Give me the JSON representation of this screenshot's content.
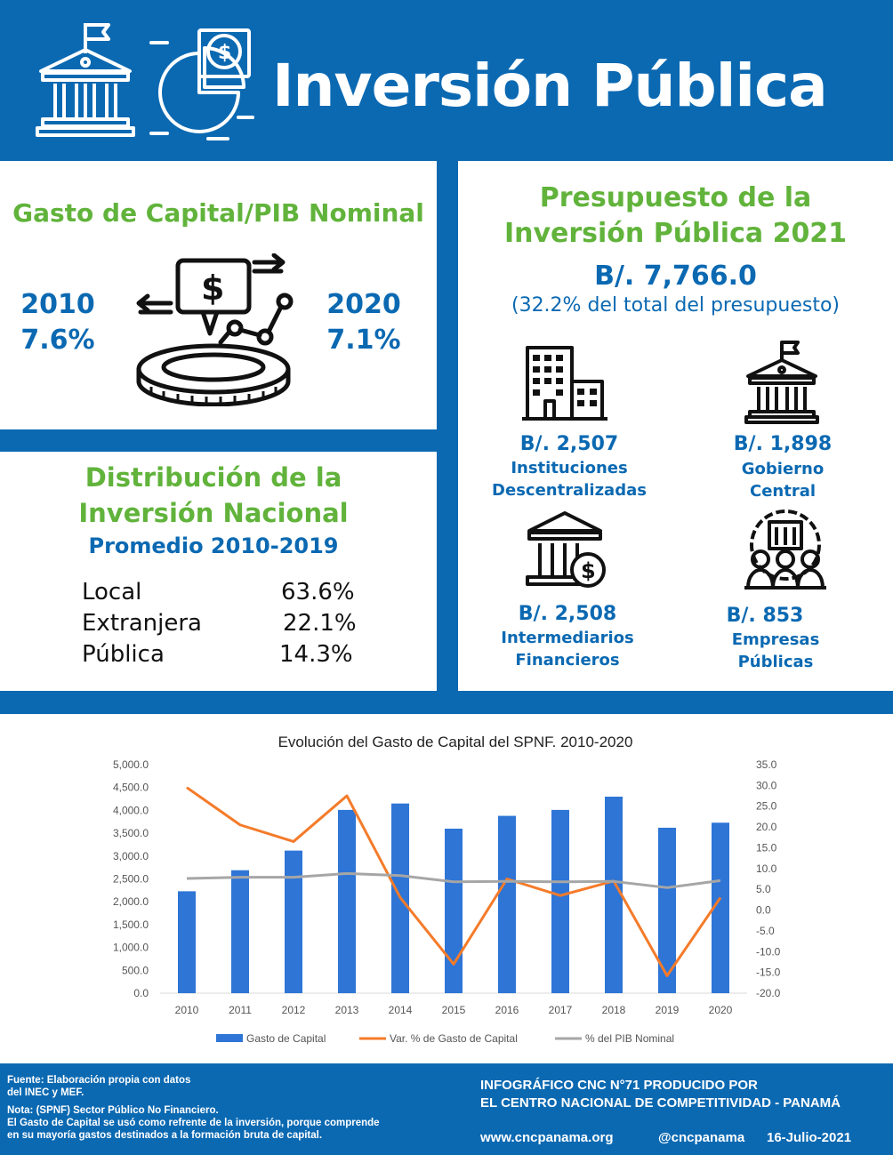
{
  "header": {
    "title": "Inversión Pública"
  },
  "capital_pib": {
    "title": "Gasto de Capital/PIB Nominal",
    "left_year": "2010",
    "left_value": "7.6%",
    "right_year": "2020",
    "right_value": "7.1%"
  },
  "distribution": {
    "title_line1": "Distribución de la",
    "title_line2": "Inversión Nacional",
    "subtitle": "Promedio 2010-2019",
    "rows": [
      {
        "label": "Local",
        "value": "63.6%"
      },
      {
        "label": "Extranjera",
        "value": "22.1%"
      },
      {
        "label": "Pública",
        "value": "14.3%"
      }
    ]
  },
  "budget": {
    "title_line1": "Presupuesto de la",
    "title_line2": "Inversión Pública 2021",
    "total": "B/. 7,766.0",
    "total_note": "(32.2% del total del presupuesto)",
    "items": [
      {
        "value": "B/. 2,507",
        "label1": "Instituciones",
        "label2": "Descentralizadas",
        "icon": "office-building-icon"
      },
      {
        "value": "B/. 1,898",
        "label1": "Gobierno",
        "label2": "Central",
        "icon": "government-building-icon"
      },
      {
        "value": "B/. 2,508",
        "label1": "Intermediarios",
        "label2": "Financieros",
        "icon": "bank-dollar-icon"
      },
      {
        "value": "B/. 853",
        "label1": "Empresas",
        "label2": "Públicas",
        "icon": "public-companies-icon"
      }
    ]
  },
  "chart_data": {
    "type": "bar",
    "title": "Evolución del Gasto de Capital del SPNF. 2010-2020",
    "categories": [
      "2010",
      "2011",
      "2012",
      "2013",
      "2014",
      "2015",
      "2016",
      "2017",
      "2018",
      "2019",
      "2020"
    ],
    "y_left_ticks": [
      "5,000.0",
      "4,500.0",
      "4,000.0",
      "3,500.0",
      "3,000.0",
      "2,500.0",
      "2,000.0",
      "1,500.0",
      "1,000.0",
      "500.0",
      "0.0"
    ],
    "y_right_ticks": [
      "35.0",
      "30.0",
      "25.0",
      "20.0",
      "15.0",
      "10.0",
      "5.0",
      "0.0",
      "-5.0",
      "-10.0",
      "-15.0",
      "-20.0"
    ],
    "ylim_left": [
      0,
      5000
    ],
    "ylim_right": [
      -20,
      35
    ],
    "series": [
      {
        "name": "Gasto de Capital",
        "type": "bar",
        "axis": "left",
        "color": "#2e75d6",
        "values": [
          2230,
          2690,
          3120,
          4010,
          4150,
          3600,
          3880,
          4010,
          4300,
          3620,
          3730
        ]
      },
      {
        "name": "Var. % de Gasto de Capital",
        "type": "line",
        "axis": "right",
        "color": "#f47b2a",
        "values": [
          29.5,
          20.5,
          16.5,
          27.5,
          3.0,
          -13.0,
          7.5,
          3.5,
          7.0,
          -15.8,
          3.0
        ]
      },
      {
        "name": "% del PIB Nominal",
        "type": "line",
        "axis": "right",
        "color": "#a6a6a6",
        "values": [
          7.6,
          7.9,
          7.9,
          8.8,
          8.3,
          6.8,
          6.9,
          6.8,
          6.9,
          5.4,
          7.1
        ]
      }
    ],
    "legend_position": "bottom",
    "grid": false
  },
  "footer": {
    "source_line1": "Fuente: Elaboración propia con datos",
    "source_line2": "del INEC y MEF.",
    "note_line1": "Nota: (SPNF) Sector Público No Financiero.",
    "note_line2": "El Gasto de Capital se usó como refrente de la inversión, porque comprende",
    "note_line3": "en su mayoría gastos destinados a la formación bruta de capital.",
    "credit_line1": "INFOGRÁFICO CNC N°71 PRODUCIDO POR",
    "credit_line2": "EL CENTRO NACIONAL DE COMPETITIVIDAD - PANAMÁ",
    "website": "www.cncpanama.org",
    "handle": "@cncpanama",
    "date": "16-Julio-2021"
  }
}
